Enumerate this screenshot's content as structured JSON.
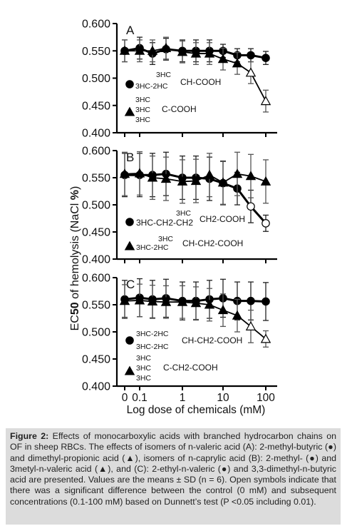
{
  "figure": {
    "ylabel_pre": "EC",
    "ylabel_sub": "50",
    "ylabel_mid": " of hemolysis (NaCl ",
    "ylabel_bold": "%",
    "ylabel_post": ")",
    "xlabel": "Log dose of chemicals (mM)"
  },
  "caption": {
    "label": "Figure 2:",
    "text": " Effects of monocarboxylic acids with branched hydrocarbon chains on OF in sheep RBCs. The effects of isomers of n-valeric acid (A): 2-methyl-butyric (●) and dimethyl-propionic acid (▲), isomers of n-caprylic acid (B): 2-methyl- (●) and 3metyl-n-valeric acid (▲), and (C): 2-ethyl-n-valeric (●) and 3,3-dimethyl-n-butyric acid are presented. Values are the means ± SD (n = 6). Open symbols indicate that there was a significant difference between the control (0 mM) and subsequent concentrations (0.1-100 mM) based on Dunnett’s test (P <0.05 including 0.01)."
  },
  "chart_data": [
    {
      "type": "line",
      "panel_label": "A",
      "x": [
        0,
        0.1,
        0.2,
        0.5,
        1,
        2,
        5,
        10,
        20,
        50,
        100
      ],
      "xticks": [
        "0",
        "0.1",
        "1",
        "10",
        "100"
      ],
      "ylim": [
        0.4,
        0.6
      ],
      "yticks": [
        "0.400",
        "0.450",
        "0.500",
        "0.550",
        "0.600"
      ],
      "series": [
        {
          "marker": "circle",
          "values": [
            0.55,
            0.555,
            0.545,
            0.553,
            0.55,
            0.55,
            0.55,
            0.55,
            0.542,
            0.542,
            0.537
          ],
          "errors": [
            0.02,
            0.02,
            0.02,
            0.02,
            0.02,
            0.02,
            0.02,
            0.012,
            0.012,
            0.012,
            0.012
          ],
          "open": [
            false,
            false,
            false,
            false,
            false,
            false,
            false,
            false,
            false,
            false,
            false
          ]
        },
        {
          "marker": "triangle",
          "values": [
            0.55,
            0.55,
            0.55,
            0.555,
            0.548,
            0.545,
            0.545,
            0.535,
            0.527,
            0.51,
            0.458
          ],
          "errors": [
            0.02,
            0.02,
            0.02,
            0.02,
            0.02,
            0.02,
            0.02,
            0.02,
            0.02,
            0.02,
            0.02
          ],
          "open": [
            false,
            false,
            false,
            false,
            false,
            false,
            false,
            false,
            false,
            true,
            true
          ]
        }
      ],
      "legend": [
        {
          "marker": "circle",
          "formula": [
            "3HC",
            "3HC-2HC",
            "CH-COOH"
          ]
        },
        {
          "marker": "triangle",
          "formula": [
            "3HC",
            "3HC",
            "3HC",
            "C-COOH"
          ]
        }
      ]
    },
    {
      "type": "line",
      "panel_label": "B",
      "x": [
        0,
        0.1,
        0.2,
        0.5,
        1,
        2,
        5,
        10,
        20,
        50,
        100
      ],
      "xticks": [
        "0",
        "0.1",
        "1",
        "10",
        "100"
      ],
      "ylim": [
        0.4,
        0.6
      ],
      "yticks": [
        "0.400",
        "0.450",
        "0.500",
        "0.550",
        "0.600"
      ],
      "series": [
        {
          "marker": "circle",
          "values": [
            0.555,
            0.555,
            0.555,
            0.557,
            0.55,
            0.55,
            0.548,
            0.54,
            0.53,
            0.497,
            0.466
          ],
          "errors": [
            0.04,
            0.04,
            0.04,
            0.04,
            0.04,
            0.04,
            0.04,
            0.04,
            0.03,
            0.03,
            0.015
          ],
          "open": [
            false,
            false,
            false,
            false,
            false,
            false,
            false,
            false,
            false,
            true,
            true
          ]
        },
        {
          "marker": "triangle",
          "values": [
            0.557,
            0.558,
            0.55,
            0.548,
            0.543,
            0.544,
            0.555,
            0.541,
            0.557,
            0.553,
            0.543
          ],
          "errors": [
            0.04,
            0.04,
            0.04,
            0.04,
            0.04,
            0.04,
            0.04,
            0.04,
            0.04,
            0.04,
            0.04
          ],
          "open": [
            false,
            false,
            false,
            false,
            false,
            false,
            false,
            false,
            false,
            false,
            false
          ]
        }
      ],
      "legend": [
        {
          "marker": "circle",
          "formula": [
            "3HC",
            "3HC-CH2-CH2",
            "CH2-COOH"
          ]
        },
        {
          "marker": "triangle",
          "formula": [
            "3HC",
            "3HC-2HC",
            "CH-CH2-COOH"
          ]
        }
      ]
    },
    {
      "type": "line",
      "panel_label": "C",
      "x": [
        0,
        0.1,
        0.2,
        0.5,
        1,
        2,
        5,
        10,
        20,
        50,
        100
      ],
      "xticks": [
        "0",
        "0.1",
        "1",
        "10",
        "100"
      ],
      "ylim": [
        0.4,
        0.6
      ],
      "yticks": [
        "0.400",
        "0.450",
        "0.500",
        "0.550",
        "0.600"
      ],
      "series": [
        {
          "marker": "circle",
          "values": [
            0.56,
            0.563,
            0.56,
            0.562,
            0.557,
            0.557,
            0.56,
            0.562,
            0.557,
            0.557,
            0.556
          ],
          "errors": [
            0.035,
            0.035,
            0.035,
            0.035,
            0.035,
            0.035,
            0.035,
            0.035,
            0.035,
            0.035,
            0.035
          ],
          "open": [
            false,
            false,
            false,
            false,
            false,
            false,
            false,
            false,
            false,
            false,
            false
          ]
        },
        {
          "marker": "triangle",
          "values": [
            0.557,
            0.558,
            0.556,
            0.555,
            0.555,
            0.553,
            0.55,
            0.54,
            0.53,
            0.51,
            0.487
          ],
          "errors": [
            0.03,
            0.03,
            0.03,
            0.03,
            0.03,
            0.03,
            0.03,
            0.03,
            0.03,
            0.03,
            0.015
          ],
          "open": [
            false,
            false,
            false,
            false,
            false,
            false,
            false,
            false,
            false,
            true,
            true
          ]
        }
      ],
      "legend": [
        {
          "marker": "circle",
          "formula": [
            "3HC-2HC",
            "3HC-2HC",
            "CH-CH2-COOH"
          ]
        },
        {
          "marker": "triangle",
          "formula": [
            "3HC",
            "3HC",
            "3HC",
            "C-CH2-COOH"
          ]
        }
      ]
    }
  ]
}
